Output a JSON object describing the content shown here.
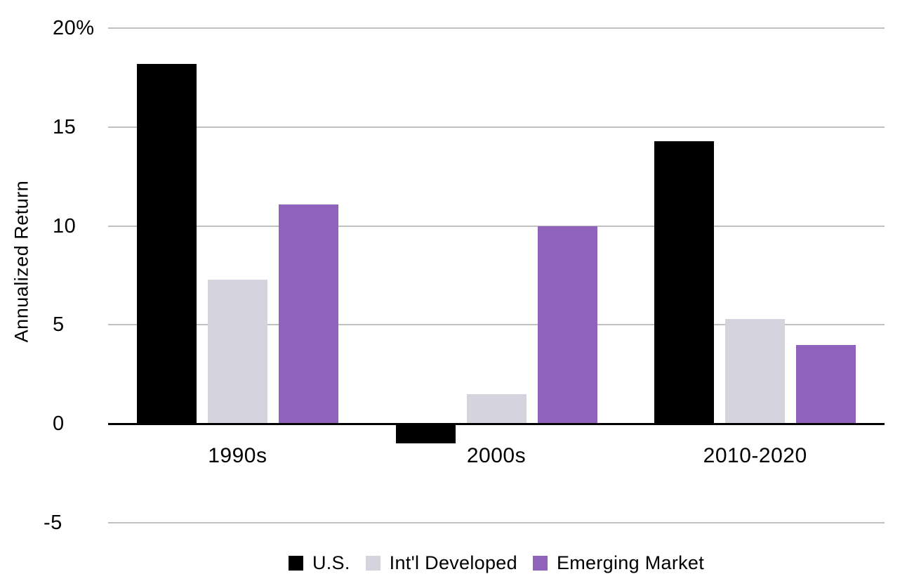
{
  "chart_data": {
    "type": "bar",
    "title": "",
    "xlabel": "",
    "ylabel": "Annualized Return",
    "categories": [
      "1990s",
      "2000s",
      "2010-2020"
    ],
    "series": [
      {
        "name": "U.S.",
        "color": "#000000",
        "values": [
          18.2,
          -0.9,
          14.3
        ]
      },
      {
        "name": "Int'l Developed",
        "color": "#D5D4DE",
        "values": [
          7.3,
          1.5,
          5.3
        ]
      },
      {
        "name": "Emerging Market",
        "color": "#8F63BC",
        "values": [
          11.1,
          10.0,
          4.0
        ]
      }
    ],
    "ylim": [
      -5,
      20
    ],
    "yticks": [
      {
        "value": 20,
        "label": "20%"
      },
      {
        "value": 15,
        "label": "15"
      },
      {
        "value": 10,
        "label": "10"
      },
      {
        "value": 5,
        "label": "5"
      },
      {
        "value": 0,
        "label": "0"
      },
      {
        "value": -5,
        "label": "-5"
      }
    ],
    "grid": true,
    "legend_position": "bottom"
  },
  "colors": {
    "background": "#ffffff",
    "gridline": "#c0c0c0",
    "axis": "#000000",
    "text": "#000000"
  }
}
